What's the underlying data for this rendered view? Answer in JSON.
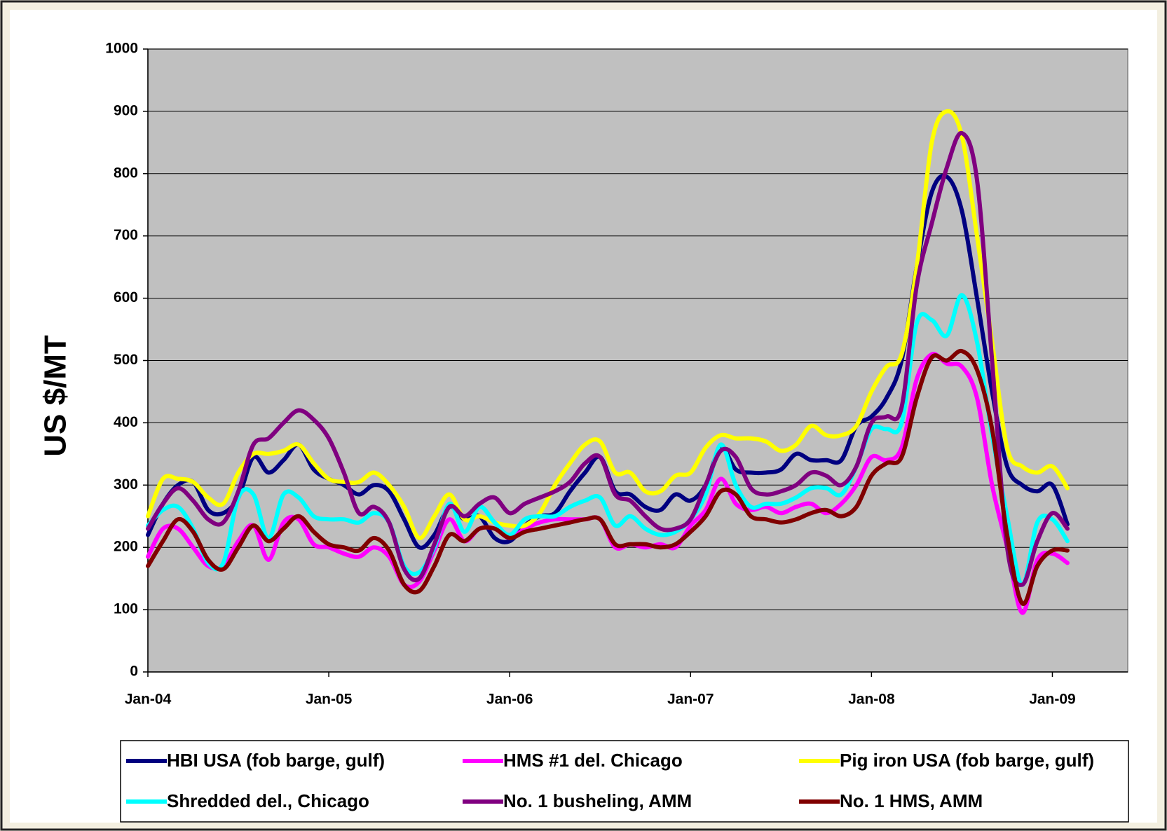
{
  "chart_data": {
    "type": "line",
    "y_axis_label": "US $/MT",
    "categories": [
      "Jan-04",
      null,
      null,
      null,
      null,
      null,
      null,
      null,
      null,
      null,
      null,
      null,
      "Jan-05",
      null,
      null,
      null,
      null,
      null,
      null,
      null,
      null,
      null,
      null,
      null,
      "Jan-06",
      null,
      null,
      null,
      null,
      null,
      null,
      null,
      null,
      null,
      null,
      null,
      "Jan-07",
      null,
      null,
      null,
      null,
      null,
      null,
      null,
      null,
      null,
      null,
      null,
      "Jan-08",
      null,
      null,
      null,
      null,
      null,
      null,
      null,
      null,
      null,
      null,
      null,
      "Jan-09",
      null,
      null,
      null,
      null,
      null
    ],
    "series": [
      {
        "name": "HBI USA (fob barge, gulf)",
        "color": "#000080",
        "values": [
          220,
          270,
          300,
          305,
          260,
          255,
          280,
          345,
          320,
          340,
          365,
          325,
          310,
          300,
          285,
          300,
          290,
          245,
          200,
          220,
          265,
          245,
          250,
          215,
          210,
          235,
          250,
          255,
          290,
          320,
          345,
          290,
          285,
          265,
          260,
          285,
          275,
          300,
          360,
          325,
          320,
          320,
          325,
          350,
          340,
          340,
          340,
          395,
          410,
          440,
          500,
          650,
          770,
          795,
          740,
          600,
          450,
          330,
          300,
          290,
          300,
          237,
          null,
          null,
          null,
          null
        ]
      },
      {
        "name": "HMS #1 del. Chicago",
        "color": "#ff00ff",
        "values": [
          185,
          230,
          230,
          200,
          170,
          170,
          210,
          235,
          180,
          240,
          245,
          205,
          200,
          190,
          185,
          200,
          185,
          140,
          145,
          195,
          245,
          210,
          230,
          230,
          215,
          230,
          240,
          245,
          245,
          245,
          245,
          200,
          205,
          200,
          205,
          200,
          235,
          260,
          310,
          270,
          260,
          265,
          255,
          265,
          270,
          255,
          270,
          300,
          345,
          340,
          360,
          470,
          510,
          495,
          490,
          440,
          300,
          200,
          95,
          180,
          190,
          175,
          null,
          null,
          null,
          null
        ]
      },
      {
        "name": "Pig iron USA (fob barge, gulf)",
        "color": "#ffff00",
        "values": [
          250,
          310,
          310,
          305,
          280,
          270,
          320,
          350,
          350,
          355,
          365,
          335,
          310,
          305,
          305,
          320,
          300,
          265,
          215,
          250,
          285,
          245,
          250,
          240,
          235,
          235,
          255,
          300,
          335,
          365,
          370,
          320,
          320,
          290,
          290,
          315,
          320,
          360,
          380,
          375,
          375,
          370,
          355,
          365,
          395,
          380,
          380,
          395,
          450,
          490,
          510,
          650,
          850,
          900,
          860,
          700,
          530,
          360,
          330,
          320,
          330,
          295,
          null,
          null,
          null,
          null
        ]
      },
      {
        "name": "Shredded del., Chicago",
        "color": "#00ffff",
        "values": [
          235,
          260,
          265,
          230,
          175,
          175,
          280,
          285,
          215,
          285,
          280,
          250,
          245,
          245,
          240,
          255,
          240,
          170,
          160,
          200,
          270,
          225,
          265,
          240,
          220,
          245,
          250,
          250,
          265,
          275,
          280,
          235,
          250,
          230,
          220,
          225,
          245,
          285,
          365,
          300,
          265,
          270,
          270,
          280,
          295,
          295,
          285,
          330,
          390,
          390,
          400,
          560,
          565,
          540,
          605,
          530,
          380,
          250,
          140,
          240,
          245,
          210,
          null,
          null,
          null,
          null
        ]
      },
      {
        "name": "No. 1 busheling, AMM",
        "color": "#800080",
        "values": [
          230,
          270,
          295,
          275,
          245,
          240,
          290,
          365,
          375,
          400,
          420,
          405,
          375,
          320,
          255,
          265,
          240,
          165,
          150,
          205,
          265,
          250,
          270,
          280,
          255,
          270,
          280,
          290,
          305,
          335,
          345,
          285,
          275,
          250,
          230,
          230,
          245,
          300,
          355,
          345,
          295,
          285,
          290,
          300,
          320,
          315,
          300,
          330,
          400,
          410,
          425,
          620,
          720,
          810,
          865,
          790,
          500,
          200,
          140,
          210,
          255,
          230,
          null,
          null,
          null,
          null
        ]
      },
      {
        "name": "No. 1 HMS, AMM",
        "color": "#800000",
        "values": [
          170,
          210,
          245,
          225,
          180,
          165,
          200,
          235,
          210,
          230,
          250,
          225,
          205,
          200,
          195,
          215,
          195,
          140,
          130,
          170,
          220,
          210,
          230,
          230,
          215,
          225,
          230,
          235,
          240,
          245,
          245,
          205,
          205,
          205,
          200,
          205,
          225,
          250,
          290,
          285,
          250,
          245,
          240,
          245,
          255,
          260,
          250,
          265,
          315,
          335,
          345,
          440,
          505,
          500,
          515,
          485,
          390,
          220,
          110,
          170,
          195,
          195,
          null,
          null,
          null,
          null
        ]
      }
    ],
    "ylim": [
      0,
      1000
    ],
    "yticks": [
      0,
      100,
      200,
      300,
      400,
      500,
      600,
      700,
      800,
      900,
      1000
    ],
    "grid": true,
    "plot_background": "#c0c0c0",
    "legend": "bottom"
  }
}
